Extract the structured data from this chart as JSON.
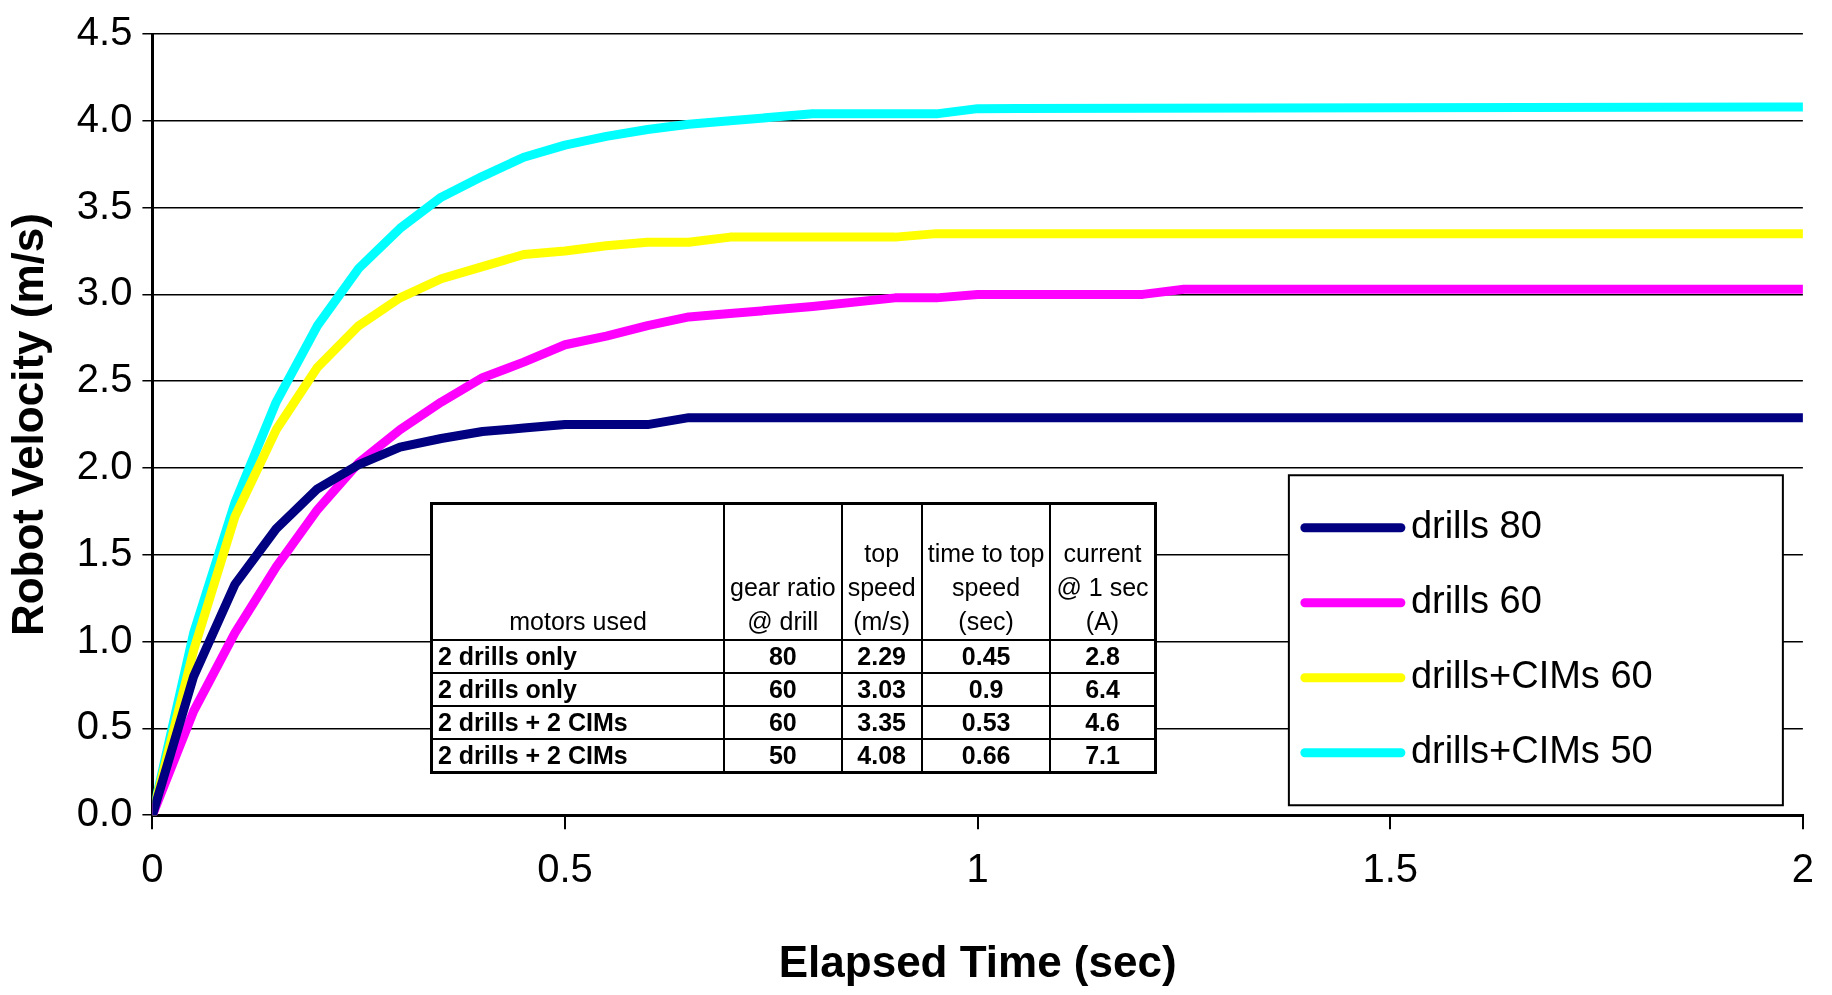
{
  "chart_data": [
    {
      "type": "line",
      "xlabel": "Elapsed Time (sec)",
      "ylabel": "Robot Velocity (m/s)",
      "xlim": [
        0,
        2
      ],
      "xticks": [
        0,
        0.5,
        1,
        1.5,
        2
      ],
      "ylim": [
        0,
        4.5
      ],
      "yticks": [
        {
          "value": 0,
          "label": "0.0"
        },
        0.5,
        {
          "value": 1,
          "label": "1.0"
        },
        1.5,
        {
          "value": 2,
          "label": "2.0"
        },
        2.5,
        {
          "value": 3,
          "label": "3.0"
        },
        3.5,
        {
          "value": 4,
          "label": "4.0"
        },
        4.5
      ],
      "grid": "y",
      "legend": "bottom right",
      "marker": "none",
      "line_style": "solid",
      "series": [
        {
          "name": "drills 80",
          "color": "#000080",
          "x": [
            0,
            0.05,
            0.1,
            0.15,
            0.2,
            0.25,
            0.3,
            0.35,
            0.4,
            0.45,
            0.5,
            0.55,
            0.6,
            0.65,
            2
          ],
          "values": [
            0,
            0.8,
            1.33,
            1.65,
            1.88,
            2.02,
            2.12,
            2.17,
            2.21,
            2.23,
            2.25,
            2.25,
            2.25,
            2.29,
            2.29
          ]
        },
        {
          "name": "drills 60",
          "color": "#ff00ff",
          "x": [
            0,
            0.05,
            0.1,
            0.15,
            0.2,
            0.25,
            0.3,
            0.35,
            0.4,
            0.45,
            0.5,
            0.55,
            0.6,
            0.65,
            0.7,
            0.8,
            0.9,
            0.95,
            1,
            1.2,
            1.25,
            2
          ],
          "values": [
            0,
            0.6,
            1.05,
            1.43,
            1.76,
            2.03,
            2.22,
            2.38,
            2.52,
            2.61,
            2.71,
            2.76,
            2.82,
            2.87,
            2.89,
            2.93,
            2.98,
            2.98,
            3.0,
            3.0,
            3.03,
            3.03
          ]
        },
        {
          "name": "drills+CIMs 60",
          "color": "#ffff00",
          "x": [
            0,
            0.05,
            0.1,
            0.15,
            0.2,
            0.25,
            0.3,
            0.35,
            0.4,
            0.45,
            0.5,
            0.55,
            0.6,
            0.65,
            0.7,
            0.9,
            0.95,
            2
          ],
          "values": [
            0,
            0.95,
            1.72,
            2.22,
            2.58,
            2.82,
            2.98,
            3.09,
            3.16,
            3.23,
            3.25,
            3.28,
            3.3,
            3.3,
            3.33,
            3.33,
            3.35,
            3.35
          ]
        },
        {
          "name": "drills+CIMs 50",
          "color": "#00ffff",
          "x": [
            0,
            0.05,
            0.1,
            0.15,
            0.2,
            0.25,
            0.3,
            0.35,
            0.4,
            0.45,
            0.5,
            0.55,
            0.6,
            0.65,
            0.7,
            0.75,
            0.8,
            0.95,
            1,
            2
          ],
          "values": [
            0,
            1.05,
            1.8,
            2.38,
            2.82,
            3.15,
            3.38,
            3.56,
            3.68,
            3.79,
            3.86,
            3.91,
            3.95,
            3.98,
            4.0,
            4.02,
            4.04,
            4.04,
            4.07,
            4.08
          ]
        }
      ]
    },
    {
      "type": "other",
      "xlabel": "motors used",
      "categories": [
        "2 drills only",
        "2 drills only",
        "2 drills + 2 CIMs",
        "2 drills + 2 CIMs"
      ],
      "data_labels": true,
      "series": [
        {
          "name": "gear ratio\n@ drill",
          "values": [
            80,
            60,
            60,
            50
          ]
        },
        {
          "name": "top\nspeed\n(m/s)",
          "values": [
            2.29,
            3.03,
            3.35,
            4.08
          ]
        },
        {
          "name": "time to top\nspeed\n(sec)",
          "values": [
            0.45,
            0.9,
            0.53,
            0.66
          ]
        },
        {
          "name": "current\n@ 1 sec\n(A)",
          "values": [
            2.8,
            6.4,
            4.6,
            7.1
          ]
        }
      ]
    }
  ]
}
